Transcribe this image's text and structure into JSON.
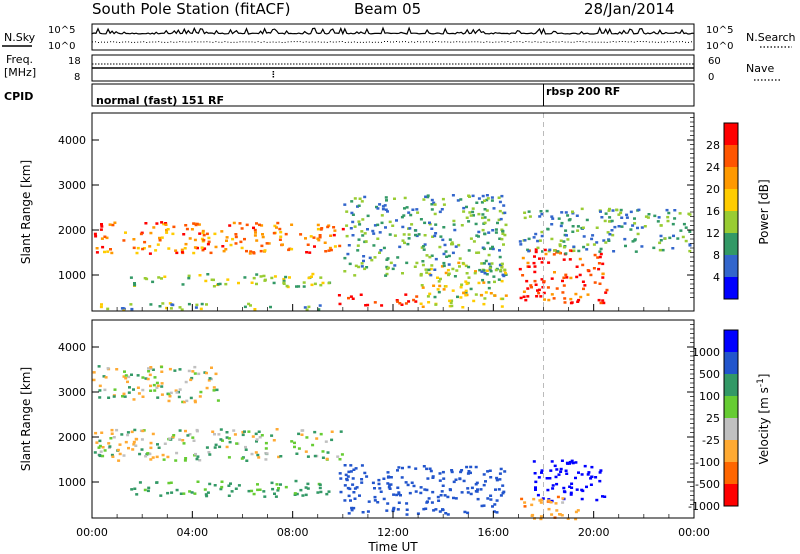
{
  "header": {
    "title": "South Pole Station (fitACF)",
    "beam": "Beam 05",
    "date": "28/Jan/2014"
  },
  "noise_panel": {
    "left_label": "N.Sky",
    "right_label": "N.Search",
    "left_ticks": [
      "10^5",
      "10^0"
    ],
    "right_ticks": [
      "10^5",
      "10^0"
    ]
  },
  "freq_panel": {
    "left_label_1": "Freq.",
    "left_label_2": "[MHz]",
    "right_label": "Nave",
    "left_ticks": [
      "18",
      "8"
    ],
    "right_ticks": [
      "60",
      "0"
    ]
  },
  "cpid_panel": {
    "label": "CPID",
    "modes": [
      {
        "name": "normal (fast) 151 RF",
        "start_hour": 0
      },
      {
        "name": "rbsp 200 RF",
        "start_hour": 18
      }
    ]
  },
  "chart_data": [
    {
      "type": "heatmap",
      "name": "power",
      "ylabel": "Slant Range [km]",
      "yticks": [
        "4000",
        "3000",
        "2000",
        "1000"
      ],
      "ytick_values": [
        4000,
        3000,
        2000,
        1000
      ],
      "ylim": [
        200,
        4600
      ],
      "xlim": [
        0,
        24
      ],
      "colorbar": {
        "label": "Power [dB]",
        "ticks": [
          "28",
          "24",
          "20",
          "16",
          "12",
          "8",
          "4"
        ],
        "colors": [
          "#ff0000",
          "#ff5500",
          "#ff9900",
          "#ffcc00",
          "#99cc33",
          "#339966",
          "#3366cc",
          "#0000ff"
        ]
      },
      "regions": [
        {
          "x0": 0.0,
          "x1": 10.0,
          "y0": 1500,
          "y1": 2200,
          "value": 22
        },
        {
          "x0": 1.5,
          "x1": 9.5,
          "y0": 750,
          "y1": 1050,
          "value": 12
        },
        {
          "x0": 0.2,
          "x1": 9.5,
          "y0": 250,
          "y1": 400,
          "value": 10
        },
        {
          "x0": 9.8,
          "x1": 13.0,
          "y0": 350,
          "y1": 600,
          "value": 28
        },
        {
          "x0": 13.0,
          "x1": 16.5,
          "y0": 300,
          "y1": 1300,
          "value": 14
        },
        {
          "x0": 10.0,
          "x1": 16.5,
          "y0": 1000,
          "y1": 2800,
          "value": 8
        },
        {
          "x0": 17.0,
          "x1": 20.5,
          "y0": 400,
          "y1": 1600,
          "value": 26
        },
        {
          "x0": 17.0,
          "x1": 23.8,
          "y0": 1500,
          "y1": 2500,
          "value": 8
        }
      ]
    },
    {
      "type": "heatmap",
      "name": "velocity",
      "ylabel": "Slant Range [km]",
      "xlabel": "Time UT",
      "yticks": [
        "4000",
        "3000",
        "2000",
        "1000"
      ],
      "ytick_values": [
        4000,
        3000,
        2000,
        1000
      ],
      "ylim": [
        200,
        4600
      ],
      "xlim": [
        0,
        24
      ],
      "xticks": [
        "00:00",
        "04:00",
        "08:00",
        "12:00",
        "16:00",
        "20:00",
        "00:00"
      ],
      "xtick_values": [
        0,
        4,
        8,
        12,
        16,
        20,
        24
      ],
      "colorbar": {
        "label": "Velocity [m s^-1]",
        "ticks": [
          "1000",
          "500",
          "100",
          "25",
          "-25",
          "-100",
          "-500",
          "-1000"
        ],
        "colors": [
          "#0000ff",
          "#2255cc",
          "#339966",
          "#66cc33",
          "#c0c0c0",
          "#ffaa33",
          "#ff6600",
          "#ff0000"
        ]
      },
      "regions": [
        {
          "x0": 0.0,
          "x1": 10.0,
          "y0": 1500,
          "y1": 2200,
          "value": 0
        },
        {
          "x0": 1.5,
          "x1": 9.5,
          "y0": 700,
          "y1": 1050,
          "value": 150
        },
        {
          "x0": 9.8,
          "x1": 16.5,
          "y0": 300,
          "y1": 1400,
          "value": 600
        },
        {
          "x0": 17.5,
          "x1": 20.5,
          "y0": 600,
          "y1": 1500,
          "value": 900
        },
        {
          "x0": 17.0,
          "x1": 19.5,
          "y0": 200,
          "y1": 700,
          "value": -200
        },
        {
          "x0": 0.0,
          "x1": 5.0,
          "y0": 2800,
          "y1": 3600,
          "value": 0
        }
      ]
    }
  ]
}
